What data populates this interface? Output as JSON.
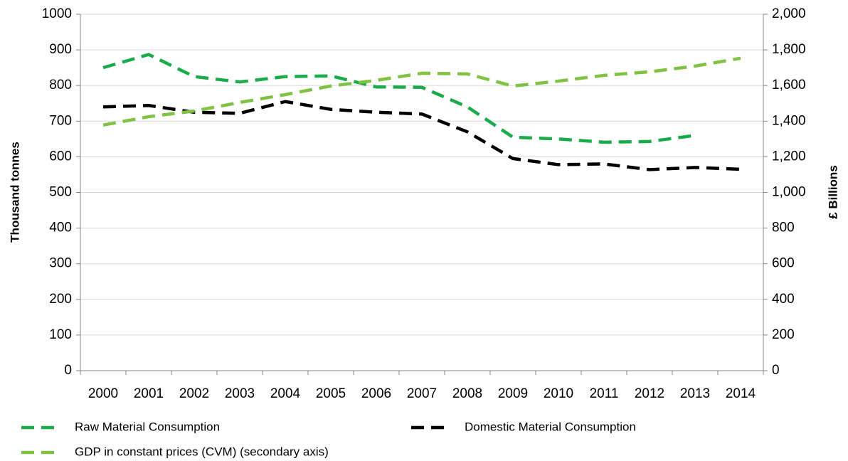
{
  "chart_data": {
    "type": "line",
    "categories": [
      "2000",
      "2001",
      "2002",
      "2003",
      "2004",
      "2005",
      "2006",
      "2007",
      "2008",
      "2009",
      "2010",
      "2011",
      "2012",
      "2013",
      "2014"
    ],
    "ylabel": "Thousand tonnes",
    "y2label": "£ Billions",
    "ylim": [
      0,
      1000
    ],
    "yticks": [
      0,
      100,
      200,
      300,
      400,
      500,
      600,
      700,
      800,
      900,
      1000
    ],
    "y2lim": [
      0,
      2000
    ],
    "y2ticks": [
      0,
      200,
      400,
      600,
      800,
      {
        "value": 1000,
        "label": "1,000"
      },
      {
        "value": 1200,
        "label": "1,200"
      },
      {
        "value": 1400,
        "label": "1,400"
      },
      {
        "value": 1600,
        "label": "1,600"
      },
      {
        "value": 1800,
        "label": "1,800"
      },
      {
        "value": 2000,
        "label": "2,000"
      }
    ],
    "grid": true,
    "series": [
      {
        "name": "Raw Material Consumption",
        "color": "#1aab4b",
        "values": [
          850,
          887,
          825,
          810,
          825,
          827,
          796,
          795,
          740,
          655,
          650,
          641,
          643,
          660,
          null
        ]
      },
      {
        "name": "Domestic Material Consumption",
        "color": "#000000",
        "values": [
          740,
          744,
          725,
          722,
          755,
          733,
          725,
          720,
          670,
          595,
          578,
          580,
          564,
          570,
          565
        ]
      },
      {
        "name": "GDP in constant prices (CVM) (secondary axis)",
        "color": "#80c342",
        "axis": "y2",
        "values": [
          1378,
          1425,
          1457,
          1505,
          1549,
          1597,
          1629,
          1669,
          1665,
          1597,
          1625,
          1657,
          1677,
          1709,
          1753
        ]
      }
    ]
  }
}
